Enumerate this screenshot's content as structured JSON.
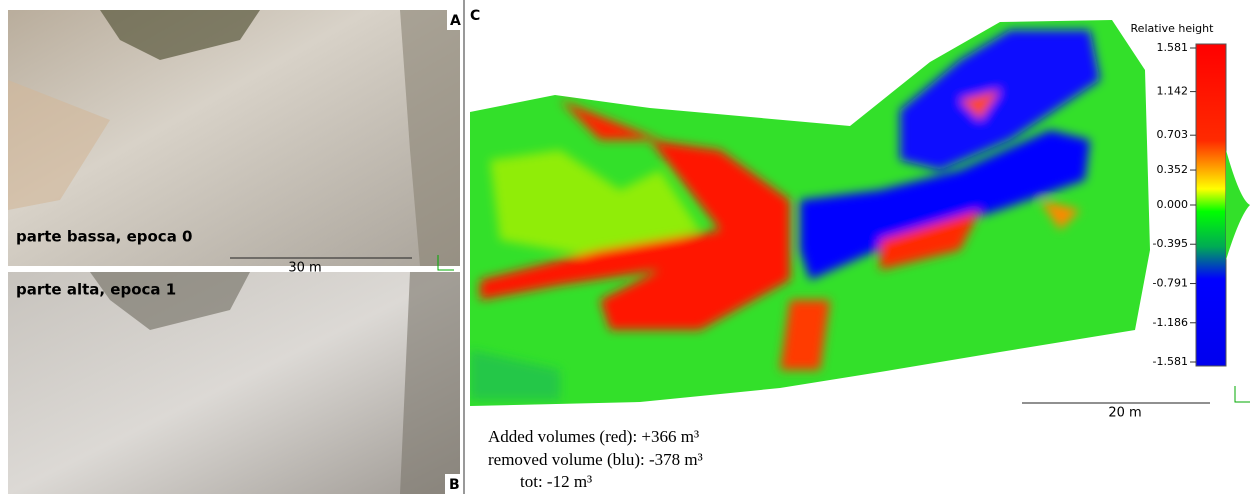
{
  "panels": {
    "a": {
      "label": "A",
      "caption": "parte bassa, epoca 0",
      "scale": "30 m"
    },
    "b": {
      "label": "B",
      "caption": "parte alta, epoca 1"
    },
    "c": {
      "label": "C",
      "scale": "20 m",
      "colorbar": {
        "title": "Relative height",
        "lim": [
          -1.581,
          1.581
        ],
        "ticks": [
          {
            "value": 1.581,
            "label": "1.581"
          },
          {
            "value": 1.142,
            "label": "1.142"
          },
          {
            "value": 0.703,
            "label": "0.703"
          },
          {
            "value": 0.352,
            "label": "0.352"
          },
          {
            "value": 0,
            "label": "0.000"
          },
          {
            "value": -0.395,
            "label": "-0.395"
          },
          {
            "value": -0.791,
            "label": "-0.791"
          },
          {
            "value": -1.186,
            "label": "-1.186"
          },
          {
            "value": -1.581,
            "label": "-1.581"
          }
        ]
      },
      "notes": [
        "Added volumes (red): +366 m³",
        "removed volume (blu): -378 m³",
        "tot: -12 m³"
      ]
    }
  }
}
